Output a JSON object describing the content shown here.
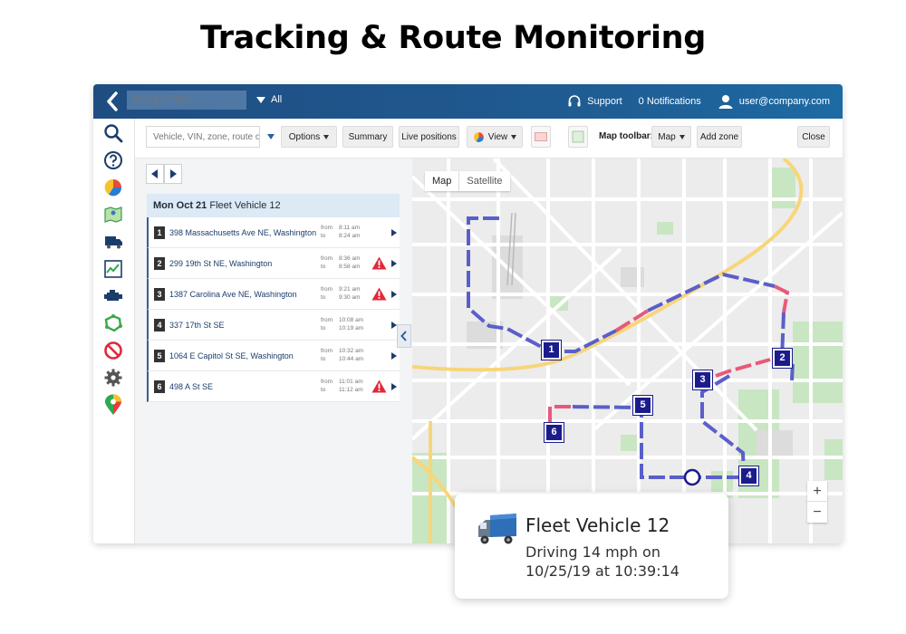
{
  "heading": "Tracking & Route Monitoring",
  "topbar": {
    "groups_filter_placeholder": "Groups Filter",
    "all_label": "All",
    "support_label": "Support",
    "notifications_label": "0 Notifications",
    "user_label": "user@company.com"
  },
  "rail": {
    "icons": [
      "search-icon",
      "help-icon",
      "pie-chart-icon",
      "map-icon",
      "truck-icon",
      "trend-chart-icon",
      "engine-icon",
      "zone-icon",
      "block-icon",
      "gear-icon",
      "pin-icon"
    ]
  },
  "toolbar": {
    "search_placeholder": "Vehicle, VIN, zone, route or",
    "options_label": "Options",
    "summary_label": "Summary",
    "live_positions_label": "Live positions",
    "view_label": "View",
    "map_toolbar_label": "Map toolbar:",
    "map_label": "Map",
    "add_zone_label": "Add zone",
    "close_label": "Close"
  },
  "trip": {
    "date": "Mon Oct 21",
    "vehicle": "Fleet Vehicle 12",
    "stops": [
      {
        "num": "1",
        "address": "398 Massachusetts Ave NE, Washington",
        "from": "8:11 am",
        "to": "8:24 am",
        "warning": false
      },
      {
        "num": "2",
        "address": "299 19th St NE, Washington",
        "from": "8:36 am",
        "to": "8:58 am",
        "warning": true
      },
      {
        "num": "3",
        "address": "1387 Carolina Ave NE, Washington",
        "from": "9:21 am",
        "to": "9:30 am",
        "warning": true
      },
      {
        "num": "4",
        "address": "337 17th St SE",
        "from": "10:08 am",
        "to": "10:19 am",
        "warning": false
      },
      {
        "num": "5",
        "address": "1064 E Capitol St SE, Washington",
        "from": "10:32 am",
        "to": "10:44 am",
        "warning": false
      },
      {
        "num": "6",
        "address": "498 A St SE",
        "from": "11:01 am",
        "to": "11:12 am",
        "warning": true
      }
    ],
    "from_label": "from",
    "to_label": "to"
  },
  "map": {
    "type_map": "Map",
    "type_satellite": "Satellite",
    "zoom_in": "+",
    "zoom_out": "−",
    "route_color": "#5a5fc9",
    "alert_color": "#e8597a",
    "marker_color": "#1b1c8c"
  },
  "vehicle_card": {
    "name": "Fleet Vehicle 12",
    "status_line1": "Driving 14 mph on",
    "status_line2": "10/25/19 at 10:39:14"
  }
}
